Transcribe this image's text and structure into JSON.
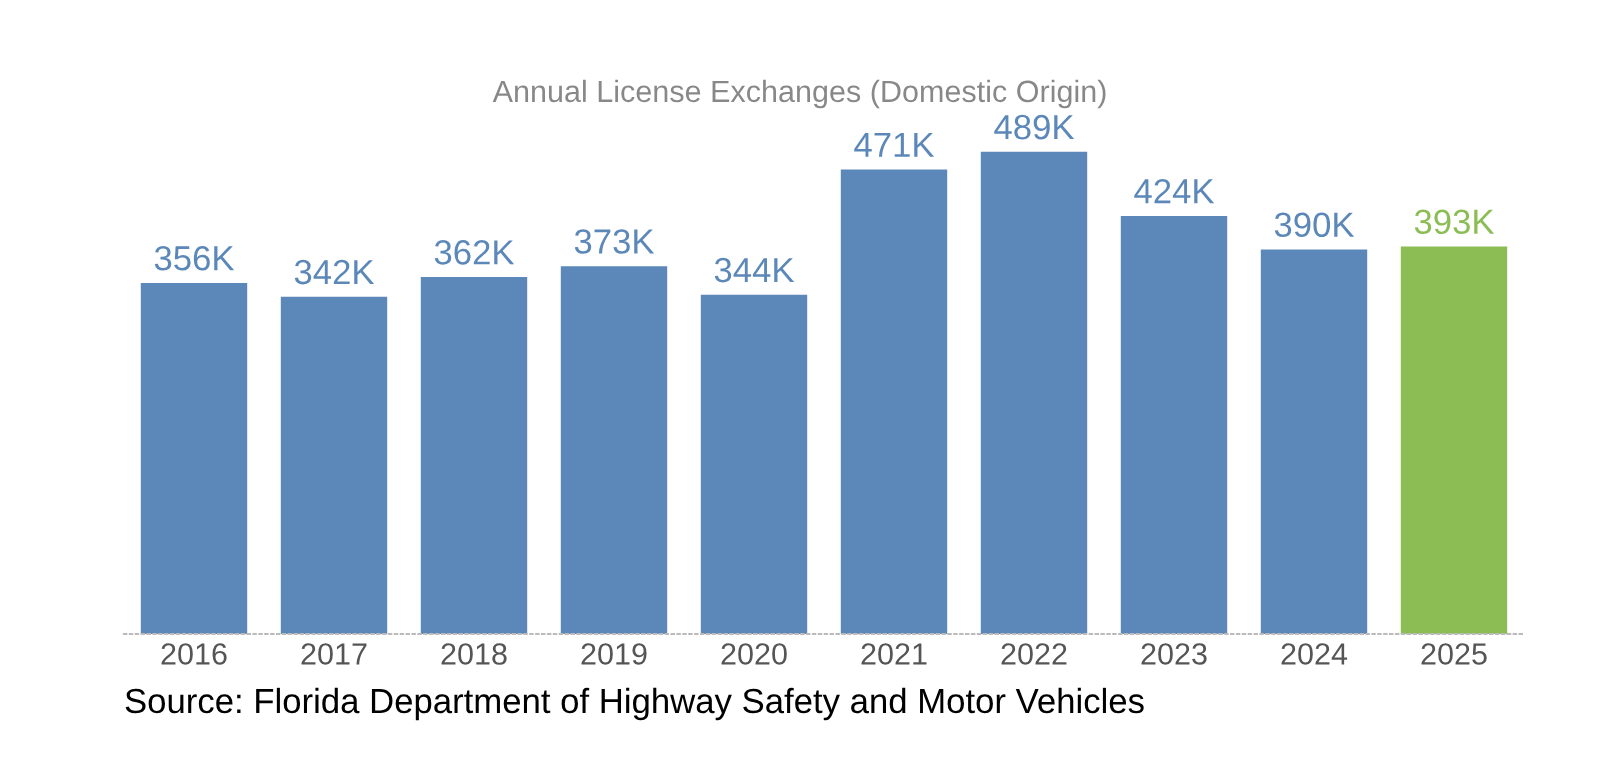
{
  "chart_data": {
    "type": "bar",
    "title": "Annual License Exchanges (Domestic Origin)",
    "categories": [
      "2016",
      "2017",
      "2018",
      "2019",
      "2020",
      "2021",
      "2022",
      "2023",
      "2024",
      "2025"
    ],
    "values": [
      356,
      342,
      362,
      373,
      344,
      471,
      489,
      424,
      390,
      393
    ],
    "value_labels": [
      "356K",
      "342K",
      "362K",
      "373K",
      "344K",
      "471K",
      "489K",
      "424K",
      "390K",
      "393K"
    ],
    "colors": [
      "#5b87b9",
      "#5b87b9",
      "#5b87b9",
      "#5b87b9",
      "#5b87b9",
      "#5b87b9",
      "#5b87b9",
      "#5b87b9",
      "#5b87b9",
      "#8bbd54"
    ],
    "annotations": [
      "Source: Florida Department of Highway Safety and Motor Vehicles"
    ],
    "grid": false
  }
}
